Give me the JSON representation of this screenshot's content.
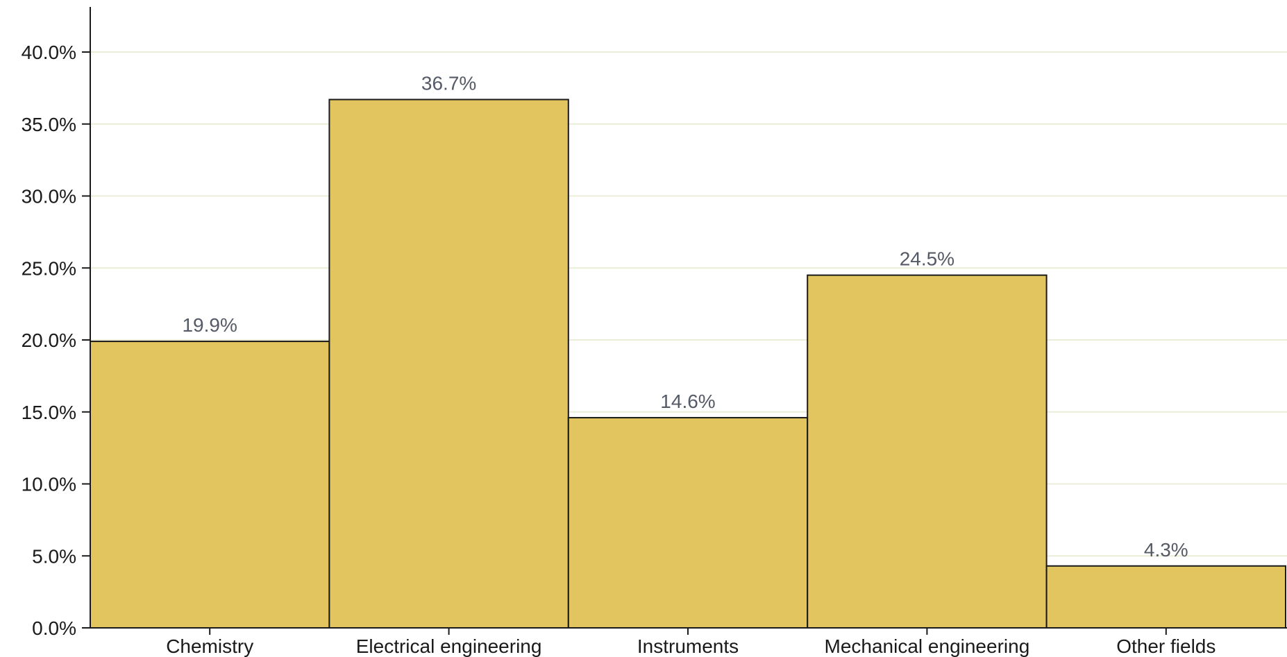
{
  "chart_data": {
    "type": "bar",
    "categories": [
      "Chemistry",
      "Electrical engineering",
      "Instruments",
      "Mechanical engineering",
      "Other fields"
    ],
    "values": [
      19.9,
      36.7,
      14.6,
      24.5,
      4.3
    ],
    "data_labels": [
      "19.9%",
      "36.7%",
      "14.6%",
      "24.5%",
      "4.3%"
    ],
    "yticks": [
      "0.0%",
      "5.0%",
      "10.0%",
      "15.0%",
      "20.0%",
      "25.0%",
      "30.0%",
      "35.0%",
      "40.0%"
    ],
    "ylim": [
      0,
      40
    ],
    "grid": true,
    "bar_color": "#e2c55e",
    "bar_edge_color": "#1a1a1a",
    "grid_color": "#ecedd8"
  }
}
